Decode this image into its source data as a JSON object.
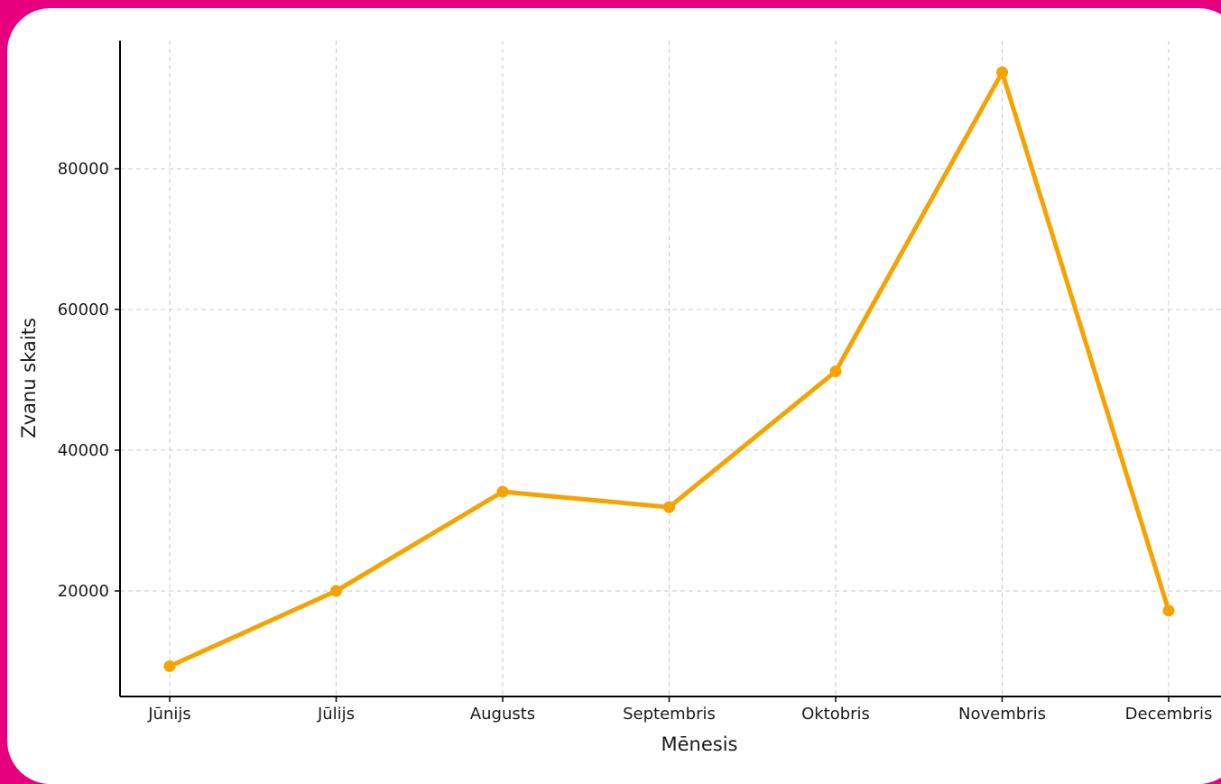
{
  "chart_data": {
    "type": "line",
    "title": "",
    "xlabel": "Mēnesis",
    "ylabel": "Zvanu skaits",
    "categories": [
      "Jūnijs",
      "Jūlijs",
      "Augusts",
      "Septembris",
      "Oktobris",
      "Novembris",
      "Decembris"
    ],
    "series": [
      {
        "values": [
          9300,
          20000,
          34100,
          31900,
          51200,
          93700,
          17200
        ],
        "color": "#f5a300"
      }
    ],
    "yticks": [
      20000,
      40000,
      60000,
      80000
    ],
    "ytick_labels": [
      "20000",
      "40000",
      "60000",
      "80000"
    ],
    "ylim": [
      5000,
      98000
    ],
    "grid": true,
    "legend": "none"
  },
  "colors": {
    "background": "#e6007e",
    "panel": "#ffffff",
    "line": "#f5a300"
  }
}
